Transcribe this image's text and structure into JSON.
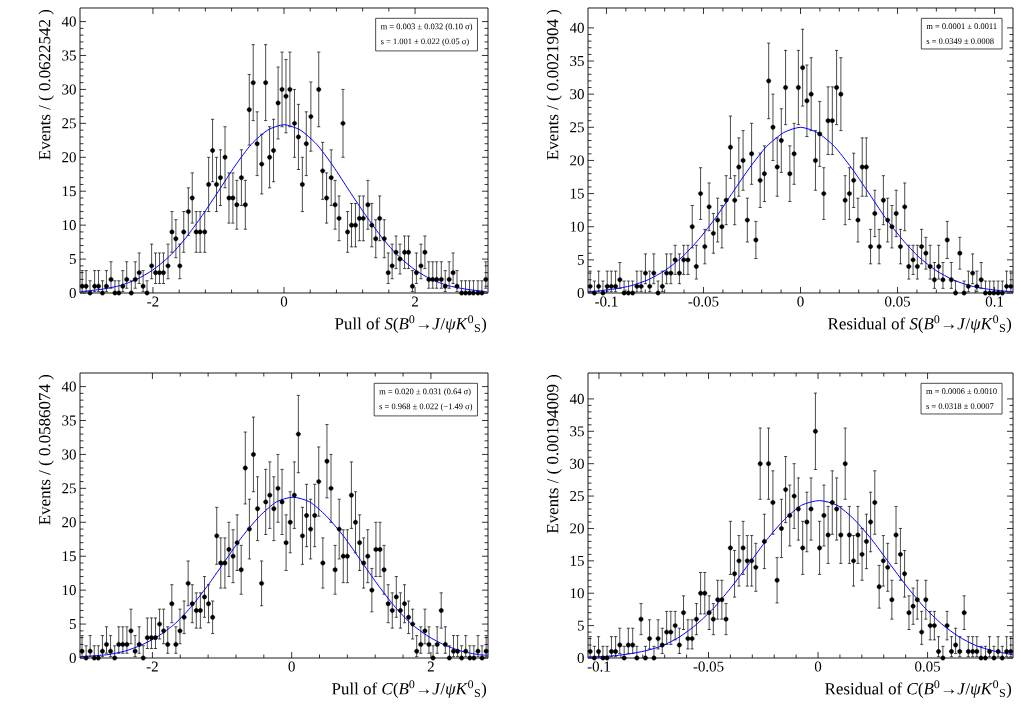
{
  "chart_data": [
    {
      "type": "scatter",
      "xlabel": "Pull of *S*(*B*$^{0}$→*J*/*ψK*$^{0}$$_{S}$)",
      "ylabel": "Events / ( 0.0622542 )",
      "xlim": [
        -3.113,
        3.113
      ],
      "ylim": [
        0,
        42
      ],
      "xticks": [
        -2,
        0,
        2
      ],
      "yticks": [
        0,
        5,
        10,
        15,
        20,
        25,
        30,
        35,
        40
      ],
      "annotations": [
        "m = 0.003 ± 0.032 (0.10 σ)",
        "s = 1.001 ± 0.022 (0.05 σ)"
      ],
      "series": [
        {
          "type": "scatter",
          "color": "#000000",
          "marker": "circle",
          "x": [
            -3.08,
            -3.02,
            -2.96,
            -2.89,
            -2.83,
            -2.77,
            -2.71,
            -2.64,
            -2.58,
            -2.52,
            -2.46,
            -2.4,
            -2.33,
            -2.27,
            -2.21,
            -2.15,
            -2.09,
            -2.02,
            -1.96,
            -1.9,
            -1.84,
            -1.77,
            -1.71,
            -1.65,
            -1.59,
            -1.53,
            -1.46,
            -1.4,
            -1.34,
            -1.28,
            -1.21,
            -1.15,
            -1.09,
            -1.03,
            -0.97,
            -0.9,
            -0.84,
            -0.78,
            -0.72,
            -0.65,
            -0.59,
            -0.53,
            -0.47,
            -0.41,
            -0.34,
            -0.28,
            -0.22,
            -0.16,
            -0.09,
            -0.03,
            0.03,
            0.09,
            0.16,
            0.22,
            0.28,
            0.34,
            0.41,
            0.47,
            0.53,
            0.59,
            0.65,
            0.72,
            0.78,
            0.84,
            0.9,
            0.97,
            1.03,
            1.09,
            1.15,
            1.21,
            1.28,
            1.34,
            1.4,
            1.46,
            1.53,
            1.59,
            1.65,
            1.71,
            1.77,
            1.84,
            1.9,
            1.96,
            2.02,
            2.09,
            2.15,
            2.21,
            2.27,
            2.33,
            2.4,
            2.46,
            2.52,
            2.58,
            2.64,
            2.71,
            2.77,
            2.83,
            2.89,
            2.96,
            3.02,
            3.08
          ],
          "values": [
            1,
            1,
            0,
            1,
            1,
            0,
            1,
            2,
            0,
            0,
            1,
            2,
            0,
            2,
            3,
            1,
            0,
            4,
            3,
            3,
            3,
            4,
            9,
            8,
            4,
            9,
            12,
            14,
            9,
            9,
            9,
            16,
            21,
            16,
            17,
            20,
            14,
            14,
            13,
            17,
            13,
            27,
            31,
            22,
            19,
            31,
            20,
            21,
            28,
            30,
            29,
            30,
            25,
            23,
            16,
            22,
            26,
            null,
            30,
            18,
            14,
            17,
            13,
            11,
            25,
            9,
            10,
            10,
            11,
            11,
            13,
            10,
            8,
            11,
            8,
            3,
            4,
            6,
            5,
            6,
            6,
            1,
            3,
            4,
            6,
            2,
            2,
            2,
            2,
            1,
            2,
            3,
            1,
            0,
            0,
            0,
            0,
            0,
            0,
            2
          ],
          "errors": [
            [
              0.2,
              3.3
            ],
            [
              0.2,
              3.3
            ],
            [
              0,
              1.8
            ],
            [
              0.2,
              3.3
            ],
            [
              0.2,
              3.3
            ],
            [
              0,
              1.8
            ],
            [
              0.2,
              3.3
            ],
            [
              0.7,
              4.6
            ],
            [
              0,
              1.8
            ],
            [
              0,
              1.8
            ],
            [
              0.2,
              3.3
            ],
            [
              0.7,
              4.6
            ],
            [
              0,
              1.8
            ],
            [
              0.7,
              4.6
            ],
            [
              1.4,
              5.9
            ],
            [
              0.2,
              3.3
            ],
            [
              0,
              1.8
            ],
            [
              2.1,
              7.2
            ],
            [
              1.4,
              5.9
            ],
            [
              1.4,
              5.9
            ],
            [
              1.4,
              5.9
            ],
            [
              2.1,
              7.2
            ],
            3,
            2.8,
            [
              2.1,
              7.2
            ],
            3,
            3.5,
            3.7,
            3,
            3,
            3,
            4,
            4.6,
            4,
            4.1,
            4.5,
            3.7,
            3.7,
            3.6,
            4.1,
            3.6,
            5.2,
            5.6,
            4.7,
            4.4,
            5.6,
            4.5,
            4.6,
            5.3,
            5.5,
            5.4,
            5.5,
            5,
            4.8,
            4,
            4.7,
            5.1,
            null,
            5.5,
            4.2,
            3.7,
            4.1,
            3.6,
            3.3,
            5,
            3,
            3.2,
            3.2,
            3.3,
            3.3,
            3.6,
            3.2,
            2.8,
            3.3,
            2.8,
            [
              1.4,
              5.9
            ],
            [
              2.1,
              7.2
            ],
            2.4,
            2.2,
            2.4,
            2.4,
            [
              0.2,
              3.3
            ],
            [
              1.4,
              5.9
            ],
            [
              2.1,
              7.2
            ],
            2.4,
            [
              0.7,
              4.6
            ],
            [
              0.7,
              4.6
            ],
            [
              0.7,
              4.6
            ],
            [
              0.7,
              4.6
            ],
            [
              0.2,
              3.3
            ],
            [
              0.7,
              4.6
            ],
            [
              1.4,
              5.9
            ],
            [
              0.2,
              3.3
            ],
            [
              0,
              1.8
            ],
            [
              0,
              1.8
            ],
            [
              0,
              1.8
            ],
            [
              0,
              1.8
            ],
            [
              0,
              1.8
            ],
            [
              0,
              1.8
            ],
            [
              0.7,
              4.6
            ]
          ]
        },
        {
          "type": "line",
          "color": "#0000ff",
          "marker": "none",
          "x": [
            -3.1,
            -3,
            -2.75,
            -2.5,
            -2.25,
            -2,
            -1.75,
            -1.5,
            -1.25,
            -1,
            -0.75,
            -0.5,
            -0.25,
            0,
            0.25,
            0.5,
            0.75,
            1,
            1.25,
            1.5,
            1.75,
            2,
            2.25,
            2.5,
            2.75,
            3,
            3.1
          ],
          "values": [
            0.2,
            0.3,
            0.6,
            1.1,
            2.0,
            3.4,
            5.4,
            8.1,
            11.4,
            15.0,
            18.7,
            21.9,
            24.0,
            24.8,
            24.0,
            21.9,
            18.7,
            15.0,
            11.4,
            8.1,
            5.4,
            3.4,
            2.0,
            1.1,
            0.6,
            0.3,
            0.2
          ]
        }
      ]
    },
    {
      "type": "scatter",
      "xlabel": "Residual of *S*(*B*$^{0}$→*J*/*ψK*$^{0}$$_{S}$)",
      "ylabel": "Events / ( 0.0021904 )",
      "xlim": [
        -0.1095,
        0.1095
      ],
      "ylim": [
        0,
        43
      ],
      "xticks": [
        -0.1,
        -0.05,
        0,
        0.05,
        0.1
      ],
      "yticks": [
        0,
        5,
        10,
        15,
        20,
        25,
        30,
        35,
        40
      ],
      "annotations": [
        "m = 0.0001 ± 0.0011",
        "s = 0.0349 ± 0.0008"
      ],
      "series": [
        {
          "type": "scatter",
          "color": "#000000",
          "marker": "circle",
          "x": [
            -0.1084,
            -0.1062,
            -0.104,
            -0.1018,
            -0.0996,
            -0.0975,
            -0.0953,
            -0.0931,
            -0.0909,
            -0.0887,
            -0.0865,
            -0.0843,
            -0.0821,
            -0.0799,
            -0.0777,
            -0.0756,
            -0.0734,
            -0.0712,
            -0.069,
            -0.0668,
            -0.0646,
            -0.0624,
            -0.0602,
            -0.058,
            -0.0558,
            -0.0537,
            -0.0515,
            -0.0493,
            -0.0471,
            -0.0449,
            -0.0427,
            -0.0405,
            -0.0383,
            -0.0361,
            -0.0339,
            -0.0318,
            -0.0296,
            -0.0274,
            -0.0252,
            -0.023,
            -0.0208,
            -0.0186,
            -0.0164,
            -0.0142,
            -0.012,
            -0.0099,
            -0.0077,
            -0.0055,
            -0.0033,
            -0.0011,
            0.0011,
            0.0033,
            0.0055,
            0.0077,
            0.0099,
            0.012,
            0.0142,
            0.0164,
            0.0186,
            0.0208,
            0.023,
            0.0252,
            0.0274,
            0.0296,
            0.0318,
            0.0339,
            0.0361,
            0.0383,
            0.0405,
            0.0427,
            0.0449,
            0.0471,
            0.0493,
            0.0515,
            0.0537,
            0.0558,
            0.058,
            0.0602,
            0.0624,
            0.0646,
            0.0668,
            0.069,
            0.0712,
            0.0734,
            0.0756,
            0.0777,
            0.0799,
            0.0821,
            0.0843,
            0.0865,
            0.0887,
            0.0909,
            0.0931,
            0.0953,
            0.0975,
            0.0996,
            0.1018,
            0.104,
            0.1062,
            0.1084
          ],
          "values": [
            1,
            0,
            1,
            0,
            1,
            1,
            1,
            2,
            0,
            0,
            0,
            1,
            1,
            3,
            1,
            3,
            0,
            1,
            3,
            3,
            5,
            3,
            5,
            5,
            10,
            4,
            15,
            7,
            13,
            9,
            11,
            10,
            14,
            22,
            14,
            19,
            20,
            11,
            21,
            8,
            17,
            18,
            32,
            25,
            19,
            23,
            31,
            18,
            21,
            31,
            34,
            29,
            30,
            20,
            24,
            15,
            26,
            26,
            31,
            30,
            14,
            15,
            17,
            11,
            19,
            19,
            7,
            12,
            7,
            14,
            11,
            10,
            12,
            7,
            13,
            4,
            5,
            4,
            7,
            6,
            4,
            2,
            4,
            2,
            8,
            2,
            0,
            6,
            0,
            1,
            3,
            1,
            2,
            0,
            0,
            0,
            0,
            0,
            1,
            1
          ],
          "errors": [
            [
              0.2,
              3.3
            ],
            [
              0,
              1.8
            ],
            [
              0.2,
              3.3
            ],
            [
              0,
              1.8
            ],
            [
              0.2,
              3.3
            ],
            [
              0.2,
              3.3
            ],
            [
              0.2,
              3.3
            ],
            [
              0.7,
              4.6
            ],
            [
              0,
              1.8
            ],
            [
              0,
              1.8
            ],
            [
              0,
              1.8
            ],
            [
              0.2,
              3.3
            ],
            [
              0.2,
              3.3
            ],
            [
              1.4,
              5.9
            ],
            [
              0.2,
              3.3
            ],
            [
              1.4,
              5.9
            ],
            [
              0,
              1.8
            ],
            [
              0.2,
              3.3
            ],
            [
              1.4,
              5.9
            ],
            [
              1.4,
              5.9
            ],
            2.2,
            [
              1.4,
              5.9
            ],
            2.2,
            2.2,
            3.2,
            [
              2.1,
              7.2
            ],
            3.9,
            2.6,
            3.6,
            3,
            3.3,
            3.2,
            3.7,
            4.7,
            3.7,
            4.4,
            4.5,
            3.3,
            4.6,
            2.8,
            4.1,
            4.2,
            5.7,
            5,
            4.4,
            4.8,
            5.6,
            4.2,
            4.6,
            5.6,
            5.8,
            5.4,
            5.5,
            4.5,
            4.9,
            3.9,
            5.1,
            5.1,
            5.6,
            5.5,
            3.7,
            3.9,
            4.1,
            3.3,
            4.4,
            4.4,
            2.6,
            3.5,
            2.6,
            3.7,
            3.3,
            3.2,
            3.5,
            2.6,
            3.6,
            [
              2.1,
              7.2
            ],
            2.2,
            [
              2.1,
              7.2
            ],
            2.6,
            2.4,
            [
              2.1,
              7.2
            ],
            [
              0.7,
              4.6
            ],
            [
              2.1,
              7.2
            ],
            [
              0.7,
              4.6
            ],
            2.8,
            [
              0.7,
              4.6
            ],
            [
              0,
              1.8
            ],
            2.4,
            [
              0,
              1.8
            ],
            [
              0.2,
              3.3
            ],
            [
              1.4,
              5.9
            ],
            [
              0.2,
              3.3
            ],
            [
              0.7,
              4.6
            ],
            [
              0,
              1.8
            ],
            [
              0,
              1.8
            ],
            [
              0,
              1.8
            ],
            [
              0,
              1.8
            ],
            [
              0,
              1.8
            ],
            [
              0.2,
              3.3
            ],
            [
              0.2,
              3.3
            ]
          ]
        },
        {
          "type": "line",
          "color": "#0000ff",
          "marker": "none",
          "x": [
            -0.1095,
            -0.1047,
            -0.096,
            -0.0873,
            -0.0785,
            -0.0698,
            -0.0611,
            -0.0524,
            -0.0436,
            -0.0349,
            -0.0262,
            -0.0175,
            -0.0087,
            0,
            0.0087,
            0.0175,
            0.0262,
            0.0349,
            0.0436,
            0.0524,
            0.0611,
            0.0698,
            0.0785,
            0.0873,
            0.096,
            0.1047,
            0.1095
          ],
          "values": [
            0.2,
            0.3,
            0.6,
            1.1,
            2.0,
            3.4,
            5.4,
            8.1,
            11.4,
            15.2,
            18.9,
            22.1,
            24.2,
            25.0,
            24.2,
            22.1,
            18.9,
            15.2,
            11.4,
            8.1,
            5.4,
            3.4,
            2.0,
            1.1,
            0.6,
            0.3,
            0.2
          ]
        }
      ]
    },
    {
      "type": "scatter",
      "xlabel": "Pull of *C*(*B*$^{0}$→*J*/*ψK*$^{0}$$_{S}$)",
      "ylabel": "Events / ( 0.0586074 )",
      "xlim": [
        -3.04,
        2.82
      ],
      "ylim": [
        0,
        42
      ],
      "xticks": [
        -2,
        0,
        2
      ],
      "yticks": [
        0,
        5,
        10,
        15,
        20,
        25,
        30,
        35,
        40
      ],
      "annotations": [
        "m = 0.020 ± 0.031 (0.64 σ)",
        "s = 0.968 ± 0.022 (−1.49 σ)"
      ],
      "series": [
        {
          "type": "scatter",
          "color": "#000000",
          "marker": "circle",
          "x": [
            -3.011,
            -2.952,
            -2.894,
            -2.835,
            -2.777,
            -2.718,
            -2.659,
            -2.601,
            -2.542,
            -2.483,
            -2.425,
            -2.366,
            -2.308,
            -2.249,
            -2.19,
            -2.132,
            -2.073,
            -2.014,
            -1.956,
            -1.897,
            -1.839,
            -1.78,
            -1.721,
            -1.663,
            -1.604,
            -1.545,
            -1.487,
            -1.428,
            -1.37,
            -1.311,
            -1.252,
            -1.194,
            -1.135,
            -1.076,
            -1.018,
            -0.959,
            -0.901,
            -0.842,
            -0.783,
            -0.725,
            -0.666,
            -0.607,
            -0.549,
            -0.49,
            -0.432,
            -0.373,
            -0.314,
            -0.256,
            -0.197,
            -0.138,
            -0.08,
            -0.021,
            0.038,
            0.096,
            0.155,
            0.214,
            0.272,
            0.331,
            0.389,
            0.448,
            0.507,
            0.565,
            0.624,
            0.683,
            0.741,
            0.8,
            0.858,
            0.917,
            0.976,
            1.034,
            1.093,
            1.152,
            1.21,
            1.269,
            1.327,
            1.386,
            1.445,
            1.503,
            1.562,
            1.621,
            1.679,
            1.738,
            1.796,
            1.855,
            1.914,
            1.972,
            2.031,
            2.09,
            2.148,
            2.207,
            2.265,
            2.324,
            2.383,
            2.441,
            2.5,
            2.559,
            2.617,
            2.676,
            2.734,
            2.793
          ],
          "values": [
            1,
            0,
            1,
            0,
            0,
            1,
            2,
            1,
            0,
            2,
            2,
            2,
            4,
            1,
            2,
            0,
            3,
            3,
            3,
            5,
            4,
            2,
            8,
            2,
            4,
            6,
            11,
            8,
            7,
            7,
            9,
            8,
            6,
            18,
            14,
            14,
            16,
            15,
            17,
            13,
            28,
            19,
            30,
            22,
            11,
            23,
            24,
            22,
            25,
            23,
            17,
            20,
            24,
            33,
            18,
            21,
            19,
            21,
            26,
            14,
            29,
            25,
            13,
            19,
            15,
            15,
            24,
            20,
            17,
            14,
            15,
            10,
            16,
            16,
            13,
            8,
            7,
            9,
            7,
            8,
            6,
            5,
            1,
            2,
            4,
            2,
            0,
            2,
            7,
            2,
            0,
            1,
            1,
            0,
            1,
            0,
            0,
            1,
            0,
            1
          ],
          "errors": [
            [
              0.2,
              3.3
            ],
            [
              0,
              1.8
            ],
            [
              0.2,
              3.3
            ],
            [
              0,
              1.8
            ],
            [
              0,
              1.8
            ],
            [
              0.2,
              3.3
            ],
            [
              0.7,
              4.6
            ],
            [
              0.2,
              3.3
            ],
            [
              0,
              1.8
            ],
            [
              0.7,
              4.6
            ],
            [
              0.7,
              4.6
            ],
            [
              0.7,
              4.6
            ],
            [
              2.1,
              7.2
            ],
            [
              0.2,
              3.3
            ],
            [
              0.7,
              4.6
            ],
            [
              0,
              1.8
            ],
            [
              1.4,
              5.9
            ],
            [
              1.4,
              5.9
            ],
            [
              1.4,
              5.9
            ],
            2.2,
            [
              2.1,
              7.2
            ],
            [
              0.7,
              4.6
            ],
            2.8,
            [
              0.7,
              4.6
            ],
            [
              2.1,
              7.2
            ],
            2.4,
            3.3,
            2.8,
            2.6,
            2.6,
            3,
            2.8,
            2.4,
            4.2,
            3.7,
            3.7,
            4,
            3.9,
            4.1,
            3.6,
            5.3,
            4.4,
            5.5,
            4.7,
            3.3,
            4.8,
            4.9,
            4.7,
            5,
            4.8,
            4.1,
            4.5,
            4.9,
            5.7,
            4.2,
            4.6,
            4.4,
            4.6,
            5.1,
            3.7,
            5.4,
            5,
            3.6,
            4.4,
            3.9,
            3.9,
            4.9,
            4.5,
            4.1,
            3.7,
            3.9,
            3.2,
            4,
            4,
            3.6,
            2.8,
            2.6,
            3,
            2.6,
            2.8,
            2.4,
            2.2,
            [
              0.2,
              3.3
            ],
            [
              0.7,
              4.6
            ],
            [
              2.1,
              7.2
            ],
            [
              0.7,
              4.6
            ],
            [
              0,
              1.8
            ],
            [
              0.7,
              4.6
            ],
            2.6,
            [
              0.7,
              4.6
            ],
            [
              0,
              1.8
            ],
            [
              0.2,
              3.3
            ],
            [
              0.2,
              3.3
            ],
            [
              0,
              1.8
            ],
            [
              0.2,
              3.3
            ],
            [
              0,
              1.8
            ],
            [
              0,
              1.8
            ],
            [
              0.2,
              3.3
            ],
            [
              0,
              1.8
            ],
            [
              0.2,
              3.3
            ]
          ]
        },
        {
          "type": "line",
          "color": "#0000ff",
          "marker": "none",
          "x": [
            -3.04,
            -2.88,
            -2.64,
            -2.4,
            -2.16,
            -1.92,
            -1.67,
            -1.43,
            -1.19,
            -0.95,
            -0.71,
            -0.46,
            -0.22,
            0.02,
            0.26,
            0.5,
            0.75,
            0.99,
            1.23,
            1.47,
            1.71,
            1.96,
            2.2,
            2.44,
            2.68,
            2.82
          ],
          "values": [
            0.2,
            0.3,
            0.5,
            1.0,
            1.9,
            3.2,
            5.1,
            7.7,
            10.9,
            14.4,
            17.9,
            20.9,
            23.0,
            23.7,
            23.0,
            20.9,
            17.9,
            14.4,
            10.9,
            7.7,
            5.1,
            3.2,
            1.9,
            1.0,
            0.5,
            0.4
          ]
        }
      ]
    },
    {
      "type": "scatter",
      "xlabel": "Residual of *C*(*B*$^{0}$→*J*/*ψK*$^{0}$$_{S}$)",
      "ylabel": "Events / ( 0.00194009 )",
      "xlim": [
        -0.105,
        0.089
      ],
      "ylim": [
        0,
        44
      ],
      "xticks": [
        -0.1,
        -0.05,
        0,
        0.05
      ],
      "yticks": [
        0,
        5,
        10,
        15,
        20,
        25,
        30,
        35,
        40
      ],
      "annotations": [
        "m = 0.0006 ± 0.0010",
        "s = 0.0318 ± 0.0007"
      ],
      "series": [
        {
          "type": "scatter",
          "color": "#000000",
          "marker": "circle",
          "x": [
            -0.104,
            -0.1021,
            -0.1002,
            -0.0982,
            -0.0963,
            -0.0943,
            -0.0924,
            -0.0905,
            -0.0885,
            -0.0866,
            -0.0846,
            -0.0827,
            -0.0808,
            -0.0788,
            -0.0769,
            -0.0749,
            -0.073,
            -0.0711,
            -0.0691,
            -0.0672,
            -0.0652,
            -0.0633,
            -0.0614,
            -0.0594,
            -0.0575,
            -0.0555,
            -0.0536,
            -0.0517,
            -0.0497,
            -0.0478,
            -0.0458,
            -0.0439,
            -0.042,
            -0.04,
            -0.0381,
            -0.0361,
            -0.0342,
            -0.0323,
            -0.0303,
            -0.0284,
            -0.0264,
            -0.0245,
            -0.0226,
            -0.0206,
            -0.0187,
            -0.0167,
            -0.0148,
            -0.0129,
            -0.0109,
            -0.009,
            -0.007,
            -0.0051,
            -0.0032,
            -0.0012,
            0.0007,
            0.0027,
            0.0046,
            0.0065,
            0.0085,
            0.0104,
            0.0124,
            0.0143,
            0.0162,
            0.0182,
            0.0201,
            0.0221,
            0.024,
            0.0259,
            0.0279,
            0.0298,
            0.0318,
            0.0337,
            0.0356,
            0.0376,
            0.0395,
            0.0415,
            0.0434,
            0.0453,
            0.0473,
            0.0492,
            0.0512,
            0.0531,
            0.055,
            0.057,
            0.0589,
            0.0609,
            0.0628,
            0.0647,
            0.0667,
            0.0686,
            0.0706,
            0.0725,
            0.0744,
            0.0764,
            0.0783,
            0.0803,
            0.0822,
            0.0841,
            0.0861,
            0.088
          ],
          "values": [
            1,
            0,
            1,
            0,
            0,
            1,
            1,
            2,
            0,
            2,
            2,
            0,
            6,
            0,
            3,
            0,
            3,
            2,
            4,
            4,
            5,
            2,
            7,
            3,
            3,
            6,
            10,
            10,
            7,
            6,
            9,
            9,
            6,
            17,
            13,
            15,
            17,
            15,
            15,
            14,
            30,
            18,
            30,
            24,
            12,
            20,
            26,
            22,
            25,
            23,
            17,
            21,
            23,
            35,
            17,
            22,
            19,
            24,
            23,
            19,
            30,
            19,
            15,
            19,
            16,
            18,
            21,
            24,
            11,
            15,
            14,
            9,
            19,
            16,
            13,
            7,
            8,
            9,
            4,
            9,
            5,
            5,
            1,
            0,
            5,
            1,
            2,
            1,
            7,
            1,
            1,
            1,
            0,
            0,
            1,
            0,
            1,
            0,
            1,
            1
          ],
          "errors": [
            [
              0.2,
              3.3
            ],
            [
              0,
              1.8
            ],
            [
              0.2,
              3.3
            ],
            [
              0,
              1.8
            ],
            [
              0,
              1.8
            ],
            [
              0.2,
              3.3
            ],
            [
              0.2,
              3.3
            ],
            [
              0.7,
              4.6
            ],
            [
              0,
              1.8
            ],
            [
              0.7,
              4.6
            ],
            [
              0.7,
              4.6
            ],
            [
              0,
              1.8
            ],
            2.4,
            [
              0,
              1.8
            ],
            [
              1.4,
              5.9
            ],
            [
              0,
              1.8
            ],
            [
              1.4,
              5.9
            ],
            [
              0.7,
              4.6
            ],
            [
              2.1,
              7.2
            ],
            [
              2.1,
              7.2
            ],
            2.2,
            [
              0.7,
              4.6
            ],
            2.6,
            [
              1.4,
              5.9
            ],
            [
              1.4,
              5.9
            ],
            2.4,
            3.2,
            3.2,
            2.6,
            2.4,
            3,
            3,
            2.4,
            4.1,
            3.6,
            3.9,
            4.1,
            3.9,
            3.9,
            3.7,
            5.5,
            4.2,
            5.5,
            4.9,
            3.5,
            4.5,
            5.1,
            4.7,
            5,
            4.8,
            4.1,
            4.6,
            4.8,
            5.9,
            4.1,
            4.7,
            4.4,
            4.9,
            4.8,
            4.4,
            5.5,
            4.4,
            3.9,
            4.4,
            4,
            4.2,
            4.6,
            4.9,
            3.3,
            3.9,
            3.7,
            3,
            4.4,
            4,
            3.6,
            2.6,
            2.8,
            3,
            [
              2.1,
              7.2
            ],
            3,
            2.2,
            2.2,
            [
              0.2,
              3.3
            ],
            [
              0,
              1.8
            ],
            2.2,
            [
              0.2,
              3.3
            ],
            [
              0.7,
              4.6
            ],
            [
              0.2,
              3.3
            ],
            2.6,
            [
              0.2,
              3.3
            ],
            [
              0.2,
              3.3
            ],
            [
              0.2,
              3.3
            ],
            [
              0,
              1.8
            ],
            [
              0,
              1.8
            ],
            [
              0.2,
              3.3
            ],
            [
              0,
              1.8
            ],
            [
              0.2,
              3.3
            ],
            [
              0,
              1.8
            ],
            [
              0.2,
              3.3
            ],
            [
              0.2,
              3.3
            ]
          ]
        },
        {
          "type": "line",
          "color": "#0000ff",
          "marker": "none",
          "x": [
            -0.105,
            -0.0948,
            -0.0869,
            -0.0789,
            -0.071,
            -0.063,
            -0.0551,
            -0.0471,
            -0.0392,
            -0.0312,
            -0.0233,
            -0.0153,
            -0.0074,
            0.0006,
            0.0086,
            0.0165,
            0.0245,
            0.0324,
            0.0404,
            0.0483,
            0.0563,
            0.0642,
            0.0722,
            0.0801,
            0.089
          ],
          "values": [
            0.1,
            0.3,
            0.6,
            1.1,
            1.9,
            3.3,
            5.3,
            7.9,
            11.1,
            14.7,
            18.3,
            21.4,
            23.6,
            24.3,
            23.6,
            21.4,
            18.3,
            14.7,
            11.1,
            7.9,
            5.3,
            3.3,
            1.9,
            1.1,
            0.5
          ]
        }
      ]
    }
  ]
}
